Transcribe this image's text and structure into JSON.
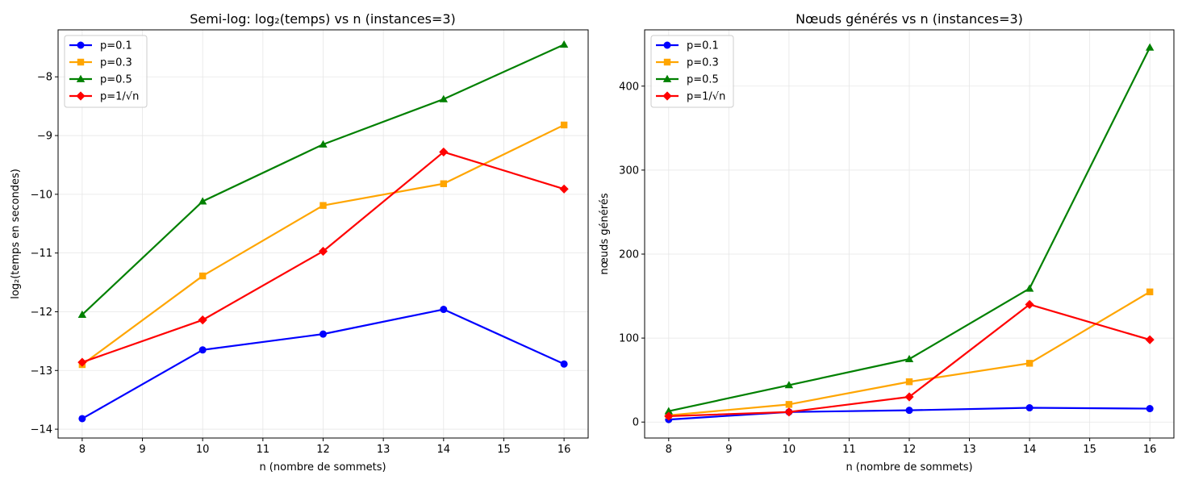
{
  "chart_data": [
    {
      "type": "line",
      "title": "Semi-log: log₂(temps) vs n (instances=3)",
      "xlabel": "n (nombre de sommets)",
      "ylabel": "log₂(temps en secondes)",
      "xlim": [
        7.6,
        16.4
      ],
      "ylim": [
        -14.15,
        -7.2
      ],
      "xticks": [
        8,
        9,
        10,
        11,
        12,
        13,
        14,
        15,
        16
      ],
      "yticks": [
        -14,
        -13,
        -12,
        -11,
        -10,
        -9,
        -8
      ],
      "ytick_labels": [
        "−14",
        "−13",
        "−12",
        "−11",
        "−10",
        "−9",
        "−8"
      ],
      "grid": true,
      "legend_position": "top-left",
      "x": [
        8,
        10,
        12,
        14,
        16
      ],
      "series": [
        {
          "name": "p=0.1",
          "color": "#0000ff",
          "marker": "circle",
          "values": [
            -13.82,
            -12.65,
            -12.38,
            -11.96,
            -12.89
          ]
        },
        {
          "name": "p=0.3",
          "color": "#ffa500",
          "marker": "square",
          "values": [
            -12.9,
            -11.39,
            -10.19,
            -9.82,
            -8.82
          ]
        },
        {
          "name": "p=0.5",
          "color": "#008000",
          "marker": "triangle",
          "values": [
            -12.05,
            -10.12,
            -9.15,
            -8.38,
            -7.45
          ]
        },
        {
          "name": "p=1/√n",
          "color": "#ff0000",
          "marker": "diamond",
          "values": [
            -12.86,
            -12.14,
            -10.97,
            -9.28,
            -9.91
          ]
        }
      ]
    },
    {
      "type": "line",
      "title": "Nœuds générés vs n (instances=3)",
      "xlabel": "n (nombre de sommets)",
      "ylabel": "nœuds générés",
      "xlim": [
        7.6,
        16.4
      ],
      "ylim": [
        -19,
        467
      ],
      "xticks": [
        8,
        9,
        10,
        11,
        12,
        13,
        14,
        15,
        16
      ],
      "yticks": [
        0,
        100,
        200,
        300,
        400
      ],
      "ytick_labels": [
        "0",
        "100",
        "200",
        "300",
        "400"
      ],
      "grid": true,
      "legend_position": "top-left",
      "x": [
        8,
        10,
        12,
        14,
        16
      ],
      "series": [
        {
          "name": "p=0.1",
          "color": "#0000ff",
          "marker": "circle",
          "values": [
            3,
            12,
            14,
            17,
            16
          ]
        },
        {
          "name": "p=0.3",
          "color": "#ffa500",
          "marker": "square",
          "values": [
            8,
            21,
            48,
            70,
            155
          ]
        },
        {
          "name": "p=0.5",
          "color": "#008000",
          "marker": "triangle",
          "values": [
            13,
            44,
            75,
            159,
            446
          ]
        },
        {
          "name": "p=1/√n",
          "color": "#ff0000",
          "marker": "diamond",
          "values": [
            7,
            12,
            30,
            140,
            98
          ]
        }
      ]
    }
  ]
}
